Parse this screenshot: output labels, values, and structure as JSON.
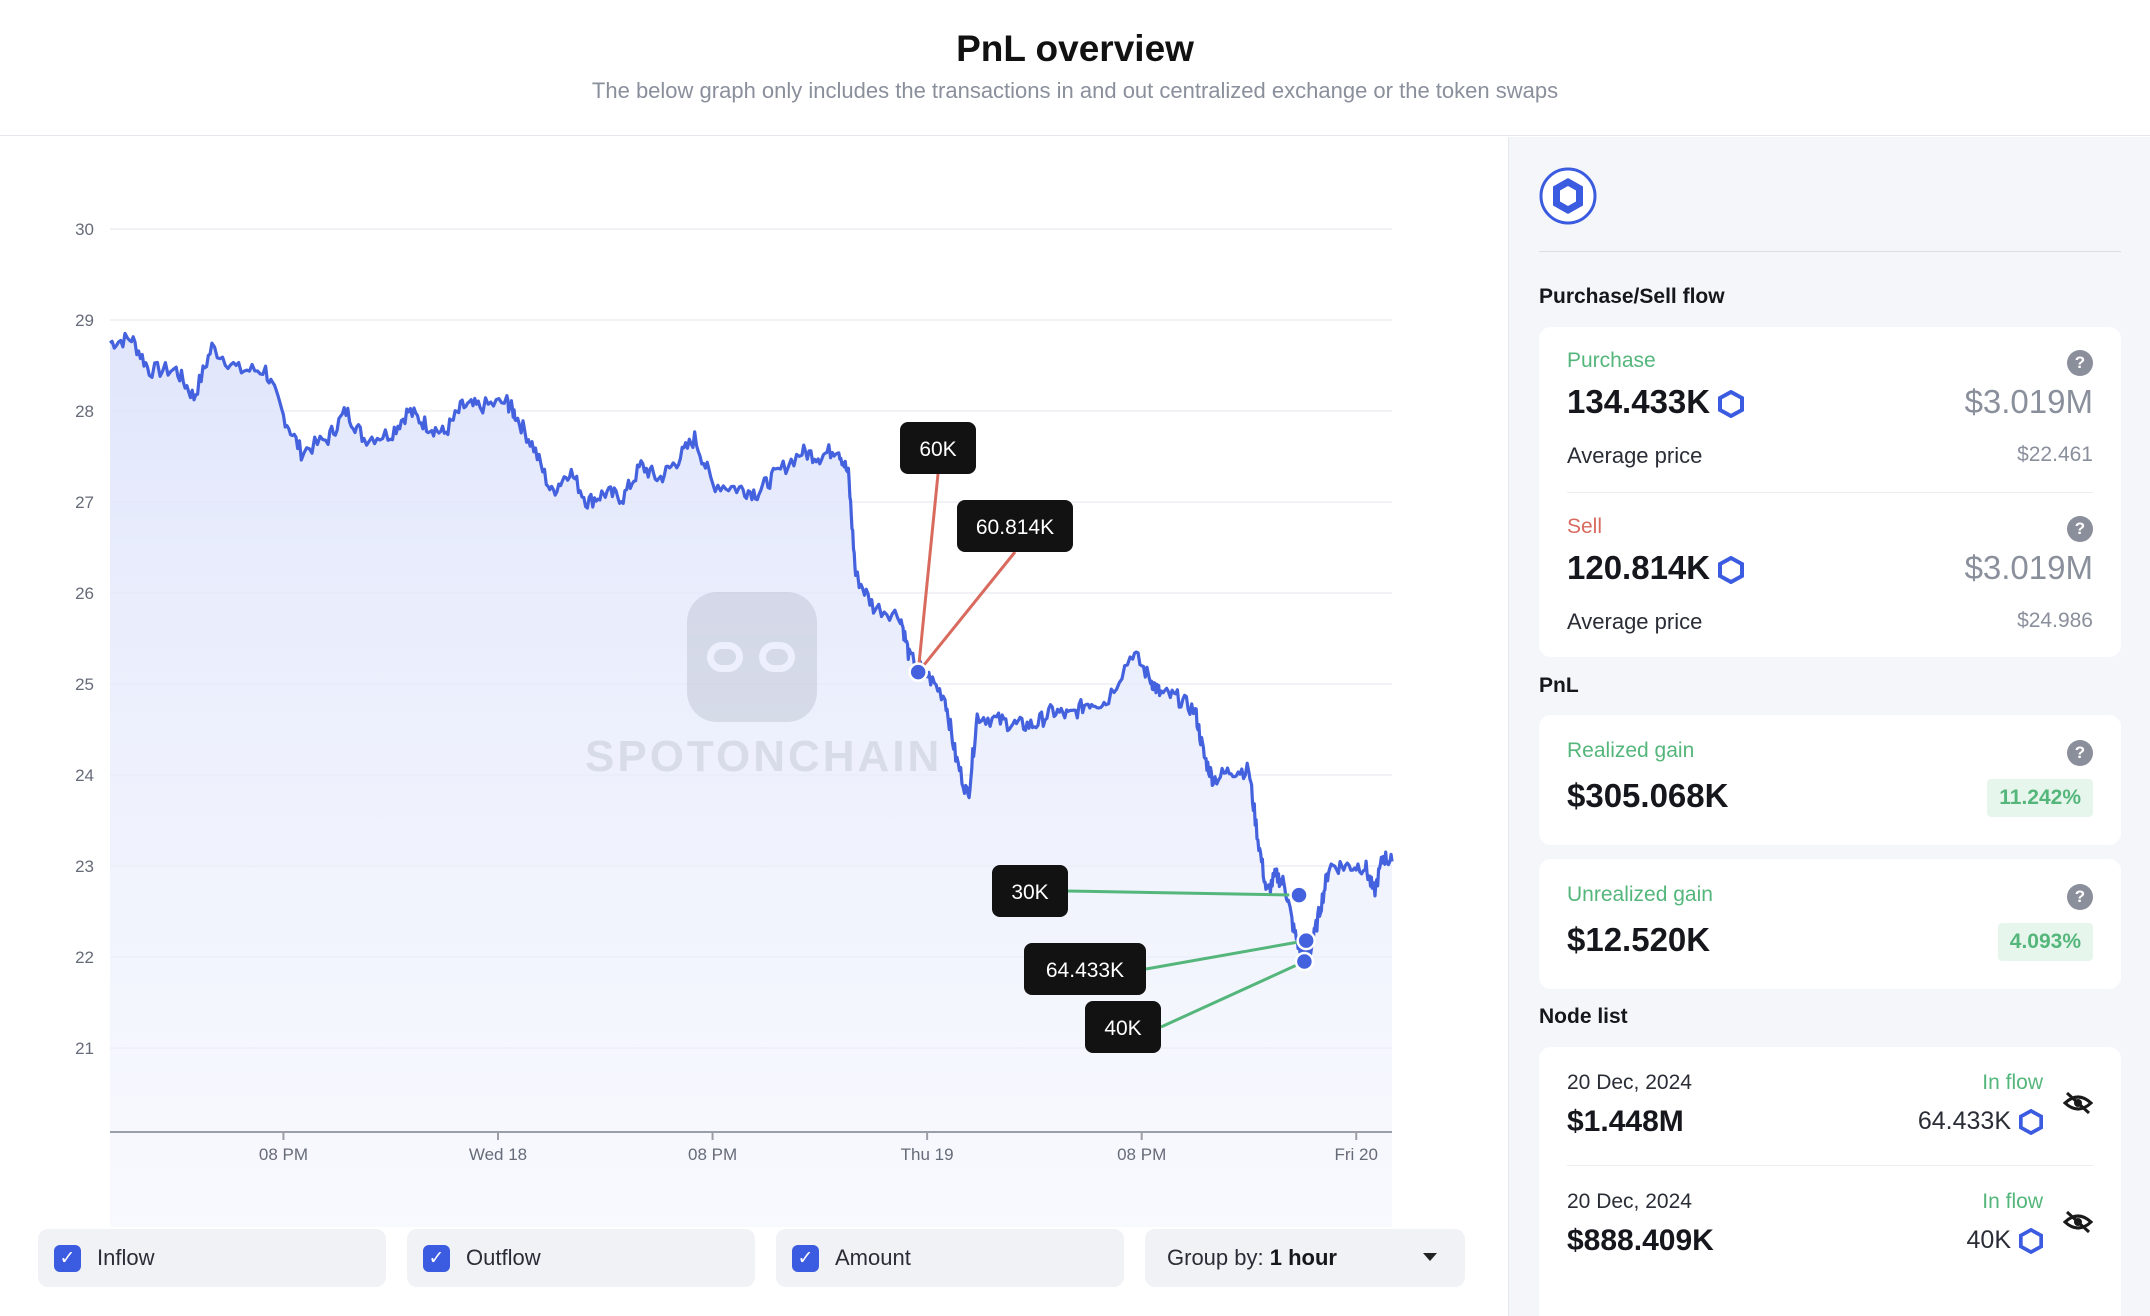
{
  "header": {
    "title": "PnL overview",
    "subtitle": "The below graph only includes the transactions in and out centralized exchange or the token swaps"
  },
  "watermark": "SPOTONCHAIN",
  "chart_data": {
    "type": "line",
    "ylim": [
      20,
      30
    ],
    "y_ticks": [
      30,
      29,
      28,
      27,
      26,
      25,
      24,
      23,
      22,
      21
    ],
    "x_ticks": [
      "08 PM",
      "Wed 18",
      "08 PM",
      "Thu 19",
      "08 PM",
      "Fri 20"
    ],
    "x_tick_hours": [
      4,
      16,
      28,
      40,
      52,
      64
    ],
    "x_range_hours": [
      -5.7,
      66.0
    ],
    "series": [
      {
        "color": "#4461de",
        "anchors": [
          [
            -5.7,
            28.75
          ],
          [
            -4.5,
            28.8
          ],
          [
            -3.5,
            28.45
          ],
          [
            -2.0,
            28.45
          ],
          [
            -1.0,
            28.15
          ],
          [
            0.0,
            28.7
          ],
          [
            1.5,
            28.45
          ],
          [
            3.0,
            28.45
          ],
          [
            4.0,
            27.95
          ],
          [
            5.0,
            27.55
          ],
          [
            6.5,
            27.7
          ],
          [
            7.5,
            28.0
          ],
          [
            8.5,
            27.7
          ],
          [
            10.0,
            27.75
          ],
          [
            11.0,
            28.0
          ],
          [
            12.0,
            27.85
          ],
          [
            13.0,
            27.75
          ],
          [
            14.0,
            28.05
          ],
          [
            15.0,
            28.05
          ],
          [
            16.5,
            28.1
          ],
          [
            17.0,
            27.95
          ],
          [
            18.0,
            27.6
          ],
          [
            19.0,
            27.1
          ],
          [
            20.0,
            27.35
          ],
          [
            21.0,
            27.0
          ],
          [
            22.0,
            27.1
          ],
          [
            23.0,
            27.05
          ],
          [
            24.0,
            27.4
          ],
          [
            25.0,
            27.25
          ],
          [
            26.0,
            27.45
          ],
          [
            27.0,
            27.7
          ],
          [
            28.0,
            27.2
          ],
          [
            29.5,
            27.15
          ],
          [
            30.5,
            27.1
          ],
          [
            31.5,
            27.3
          ],
          [
            33.0,
            27.55
          ],
          [
            34.0,
            27.5
          ],
          [
            35.0,
            27.6
          ],
          [
            35.6,
            27.3
          ],
          [
            36.0,
            26.2
          ],
          [
            37.0,
            25.85
          ],
          [
            38.5,
            25.75
          ],
          [
            39.0,
            25.3
          ],
          [
            40.0,
            25.1
          ],
          [
            41.0,
            24.85
          ],
          [
            41.6,
            24.2
          ],
          [
            42.3,
            23.75
          ],
          [
            42.8,
            24.65
          ],
          [
            44.0,
            24.6
          ],
          [
            45.0,
            24.55
          ],
          [
            46.0,
            24.55
          ],
          [
            47.0,
            24.7
          ],
          [
            48.0,
            24.65
          ],
          [
            49.0,
            24.8
          ],
          [
            50.0,
            24.8
          ],
          [
            51.5,
            25.35
          ],
          [
            52.5,
            25.05
          ],
          [
            53.0,
            24.9
          ],
          [
            54.0,
            24.85
          ],
          [
            55.0,
            24.7
          ],
          [
            55.5,
            24.2
          ],
          [
            56.0,
            23.95
          ],
          [
            57.0,
            24.05
          ],
          [
            58.0,
            24.05
          ],
          [
            58.5,
            23.3
          ],
          [
            59.0,
            22.7
          ],
          [
            59.5,
            22.9
          ],
          [
            60.0,
            22.8
          ],
          [
            60.5,
            22.3
          ],
          [
            61.0,
            22.0
          ],
          [
            61.5,
            22.1
          ],
          [
            62.0,
            22.55
          ],
          [
            62.5,
            23.0
          ],
          [
            63.5,
            23.0
          ],
          [
            64.5,
            23.0
          ],
          [
            65.0,
            22.7
          ],
          [
            65.5,
            23.1
          ],
          [
            66.0,
            23.05
          ]
        ]
      }
    ],
    "annotations": [
      {
        "label": "60K",
        "type": "outflow",
        "color": "#d86a5e",
        "point": [
          39.5,
          25.13
        ]
      },
      {
        "label": "60.814K",
        "type": "outflow",
        "color": "#d86a5e",
        "point": [
          39.5,
          25.13
        ]
      },
      {
        "label": "30K",
        "type": "inflow",
        "color": "#55b67b",
        "point": [
          60.8,
          22.68
        ]
      },
      {
        "label": "64.433K",
        "type": "inflow",
        "color": "#55b67b",
        "point": [
          61.2,
          22.18
        ]
      },
      {
        "label": "40K",
        "type": "inflow",
        "color": "#55b67b",
        "point": [
          61.1,
          21.95
        ]
      }
    ]
  },
  "controls": {
    "inflow": {
      "label": "Inflow",
      "checked": true
    },
    "outflow": {
      "label": "Outflow",
      "checked": true
    },
    "amount": {
      "label": "Amount",
      "checked": true
    },
    "group_by": {
      "prefix": "Group by:",
      "value": "1 hour"
    }
  },
  "side": {
    "purchase_sell_title": "Purchase/Sell flow",
    "purchase": {
      "label": "Purchase",
      "amount": "134.433K",
      "usd": "$3.019M",
      "avg_label": "Average price",
      "avg_value": "$22.461",
      "help": "?"
    },
    "sell": {
      "label": "Sell",
      "amount": "120.814K",
      "usd": "$3.019M",
      "avg_label": "Average price",
      "avg_value": "$24.986",
      "help": "?"
    },
    "pnl_title": "PnL",
    "realized": {
      "label": "Realized gain",
      "value": "$305.068K",
      "pct": "11.242%",
      "help": "?"
    },
    "unrealized": {
      "label": "Unrealized gain",
      "value": "$12.520K",
      "pct": "4.093%",
      "help": "?"
    },
    "node_list_title": "Node list",
    "nodes": [
      {
        "date": "20 Dec, 2024",
        "flow": "In flow",
        "usd": "$1.448M",
        "amount": "64.433K"
      },
      {
        "date": "20 Dec, 2024",
        "flow": "In flow",
        "usd": "$888.409K",
        "amount": "40K"
      }
    ]
  },
  "colors": {
    "accent": "#4461de",
    "inflow": "#55b67b",
    "outflow": "#d86a5e",
    "checkbox": "#3b5be0"
  },
  "icons": [
    "token-hexagon-icon",
    "check-icon",
    "caret-down-icon",
    "help-icon",
    "eye-off-icon"
  ]
}
